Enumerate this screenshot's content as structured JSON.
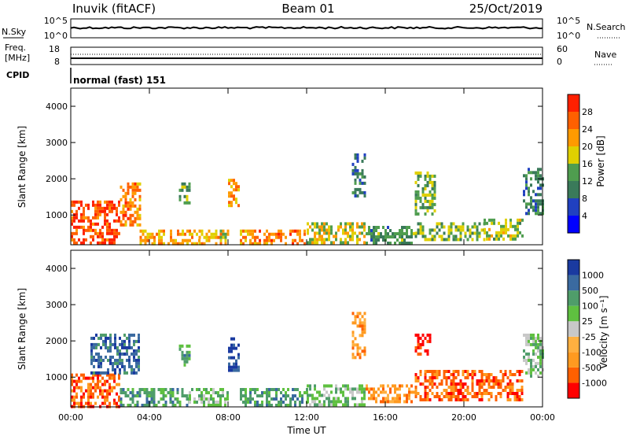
{
  "header": {
    "site": "Inuvik (fitACF)",
    "beam": "Beam 01",
    "date": "25/Oct/2019"
  },
  "labels": {
    "nsky": "N.Sky",
    "nsky_hi": "10^5",
    "nsky_lo": "10^0",
    "nsearch": "N.Search",
    "nsearch_hi": "10^5",
    "nsearch_lo": "10^0",
    "freq_line1": "Freq.",
    "freq_line2": "[MHz]",
    "freq_hi": "18",
    "freq_lo": "8",
    "nave": "Nave",
    "nave_hi": "60",
    "nave_lo": "0",
    "cpid": "CPID",
    "cpid_value": "normal (fast) 151"
  },
  "colors": {
    "power": [
      "#0000ff",
      "#2040c0",
      "#3a7a5a",
      "#4f9d4f",
      "#e0d000",
      "#ff9a00",
      "#ff6000",
      "#ff2000"
    ],
    "velocity": [
      "#ff0000",
      "#ff6000",
      "#ff9a20",
      "#ffb040",
      "#c8c8c8",
      "#5fc040",
      "#4f9d6a",
      "#3a6aa0",
      "#1a3aa0"
    ]
  },
  "chart_data": [
    {
      "type": "heatmap",
      "name": "power",
      "ylabel": "Slant Range [km]",
      "xlabel": "",
      "x_ticks": [
        "00:00",
        "04:00",
        "08:00",
        "12:00",
        "16:00",
        "20:00",
        "00:00"
      ],
      "y_ticks": [
        1000,
        2000,
        3000,
        4000
      ],
      "xlim_hours": [
        0,
        24
      ],
      "ylim_km": [
        180,
        4500
      ],
      "colorbar_label": "Power [dB]",
      "colorbar_ticks": [
        "4",
        "8",
        "12",
        "16",
        "20",
        "24",
        "28"
      ],
      "scale_range": [
        0,
        32
      ],
      "regions": [
        {
          "t": [
            0.0,
            2.5
          ],
          "r": [
            200,
            1400
          ],
          "level": 28
        },
        {
          "t": [
            2.5,
            3.5
          ],
          "r": [
            700,
            1900
          ],
          "level": 24
        },
        {
          "t": [
            3.5,
            4.2
          ],
          "r": [
            200,
            600
          ],
          "level": 20
        },
        {
          "t": [
            4.2,
            6.5
          ],
          "r": [
            250,
            600
          ],
          "level": 22
        },
        {
          "t": [
            5.5,
            6.0
          ],
          "r": [
            1300,
            1900
          ],
          "level": 14
        },
        {
          "t": [
            6.5,
            8.0
          ],
          "r": [
            250,
            600
          ],
          "level": 20
        },
        {
          "t": [
            8.0,
            8.6
          ],
          "r": [
            1300,
            2000
          ],
          "level": 22
        },
        {
          "t": [
            8.6,
            12.0
          ],
          "r": [
            250,
            600
          ],
          "level": 24
        },
        {
          "t": [
            12.0,
            15.0
          ],
          "r": [
            250,
            800
          ],
          "level": 18
        },
        {
          "t": [
            14.3,
            15.0
          ],
          "r": [
            1500,
            2700
          ],
          "level": 10
        },
        {
          "t": [
            15.0,
            17.5
          ],
          "r": [
            250,
            700
          ],
          "level": 12
        },
        {
          "t": [
            17.5,
            18.5
          ],
          "r": [
            1000,
            2200
          ],
          "level": 14
        },
        {
          "t": [
            17.5,
            21.0
          ],
          "r": [
            300,
            800
          ],
          "level": 14
        },
        {
          "t": [
            21.0,
            23.0
          ],
          "r": [
            300,
            900
          ],
          "level": 16
        },
        {
          "t": [
            23.0,
            24.0
          ],
          "r": [
            1000,
            2300
          ],
          "level": 10
        }
      ]
    },
    {
      "type": "heatmap",
      "name": "velocity",
      "ylabel": "Slant Range [km]",
      "xlabel": "Time UT",
      "x_ticks": [
        "00:00",
        "04:00",
        "08:00",
        "12:00",
        "16:00",
        "20:00",
        "00:00"
      ],
      "y_ticks": [
        1000,
        2000,
        3000,
        4000
      ],
      "xlim_hours": [
        0,
        24
      ],
      "ylim_km": [
        180,
        4500
      ],
      "colorbar_label": "Velocity [m s⁻¹]",
      "colorbar_ticks": [
        "-1000",
        "-500",
        "-100",
        "-25",
        "25",
        "100",
        "500",
        "1000"
      ],
      "regions": [
        {
          "t": [
            0.0,
            2.5
          ],
          "r": [
            200,
            1100
          ],
          "level": 1
        },
        {
          "t": [
            1.0,
            3.5
          ],
          "r": [
            1100,
            2200
          ],
          "level": 7
        },
        {
          "t": [
            2.5,
            6.0
          ],
          "r": [
            250,
            700
          ],
          "level": 6
        },
        {
          "t": [
            5.5,
            6.0
          ],
          "r": [
            1300,
            1900
          ],
          "level": 6
        },
        {
          "t": [
            6.0,
            8.0
          ],
          "r": [
            250,
            700
          ],
          "level": 5
        },
        {
          "t": [
            8.0,
            8.6
          ],
          "r": [
            1200,
            2100
          ],
          "level": 8
        },
        {
          "t": [
            8.6,
            12.0
          ],
          "r": [
            250,
            700
          ],
          "level": 6
        },
        {
          "t": [
            12.0,
            15.0
          ],
          "r": [
            250,
            800
          ],
          "level": 5
        },
        {
          "t": [
            14.3,
            15.0
          ],
          "r": [
            1500,
            2800
          ],
          "level": 2
        },
        {
          "t": [
            15.0,
            17.5
          ],
          "r": [
            350,
            800
          ],
          "level": 2
        },
        {
          "t": [
            17.5,
            18.3
          ],
          "r": [
            1600,
            2200
          ],
          "level": 0
        },
        {
          "t": [
            17.5,
            23.0
          ],
          "r": [
            400,
            1200
          ],
          "level": 1
        },
        {
          "t": [
            23.0,
            24.0
          ],
          "r": [
            1000,
            2200
          ],
          "level": 5
        }
      ]
    }
  ]
}
